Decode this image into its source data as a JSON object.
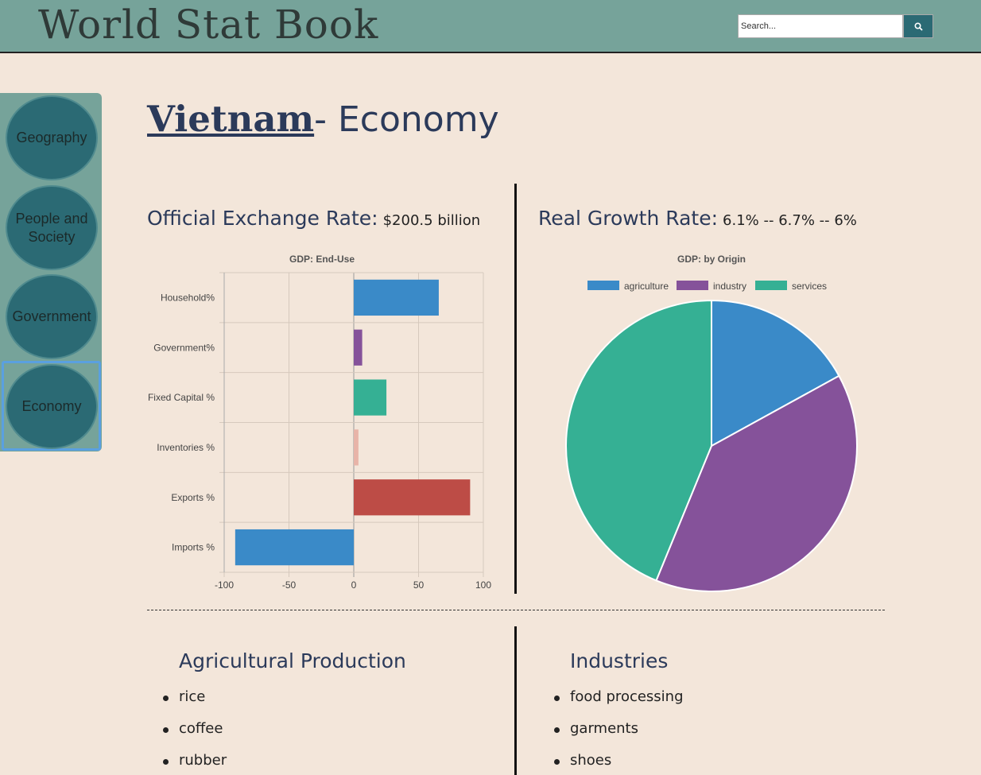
{
  "header": {
    "site_title": "World Stat Book",
    "search_placeholder": "Search..."
  },
  "sidebar": {
    "items": [
      {
        "label": "Geography",
        "active": false
      },
      {
        "label": "People and Society",
        "active": false
      },
      {
        "label": "Government",
        "active": false
      },
      {
        "label": "Economy",
        "active": true
      }
    ]
  },
  "page": {
    "country": "Vietnam",
    "title_suffix": "- Economy"
  },
  "exchange": {
    "label": "Official Exchange Rate:",
    "value": "$200.5 billion"
  },
  "growth": {
    "label": "Real Growth Rate:",
    "value": "6.1% -- 6.7% -- 6%"
  },
  "colors": {
    "blue": "#3a8ac8",
    "purple": "#85529a",
    "teal": "#35b094",
    "pink": "#e8b4a8",
    "red": "#bd4c46"
  },
  "chart_data": [
    {
      "type": "bar",
      "orientation": "horizontal",
      "title": "GDP: End-Use",
      "categories": [
        "Household%",
        "Government%",
        "Fixed Capital %",
        "Inventories %",
        "Exports %",
        "Imports %"
      ],
      "values": [
        65.6,
        6.5,
        25.2,
        3.6,
        89.8,
        -91.5
      ],
      "colors": [
        "#3a8ac8",
        "#85529a",
        "#35b094",
        "#e8b4a8",
        "#bd4c46",
        "#3a8ac8"
      ],
      "xlim": [
        -100,
        100
      ],
      "xticks": [
        "-100",
        "-50",
        "0",
        "50",
        "100"
      ],
      "grid": true
    },
    {
      "type": "pie",
      "title": "GDP: by Origin",
      "labels": [
        "agriculture",
        "industry",
        "services"
      ],
      "values": [
        17,
        39.2,
        43.8
      ],
      "colors": [
        "#3a8ac8",
        "#85529a",
        "#35b094"
      ],
      "legend": "top"
    }
  ],
  "agriculture": {
    "heading": "Agricultural Production",
    "items": [
      "rice",
      "coffee",
      "rubber"
    ]
  },
  "industries": {
    "heading": "Industries",
    "items": [
      "food processing",
      "garments",
      "shoes"
    ]
  }
}
